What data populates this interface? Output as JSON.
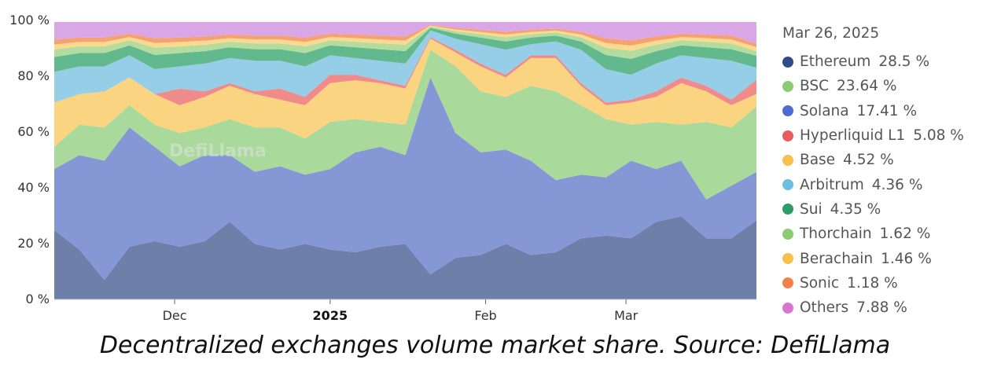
{
  "chart_data": {
    "type": "area",
    "stacked": true,
    "normalized_percent": true,
    "title": "",
    "xlabel": "",
    "ylabel": "",
    "ylim": [
      0,
      100
    ],
    "y_ticks": [
      "0 %",
      "20 %",
      "40 %",
      "60 %",
      "80 %",
      "100 %"
    ],
    "y_tick_values": [
      0,
      20,
      40,
      60,
      80,
      100
    ],
    "x_ticks": [
      {
        "label": "Dec",
        "day": 24,
        "bold": false
      },
      {
        "label": "2025",
        "day": 55,
        "bold": true
      },
      {
        "label": "Feb",
        "day": 86,
        "bold": false
      },
      {
        "label": "Mar",
        "day": 114,
        "bold": false
      }
    ],
    "x_range_days": [
      0,
      140
    ],
    "x_start_date": "Nov 7, 2024",
    "x": [
      0,
      5,
      10,
      15,
      20,
      25,
      30,
      35,
      40,
      45,
      50,
      55,
      60,
      65,
      70,
      75,
      80,
      85,
      90,
      95,
      100,
      105,
      110,
      115,
      120,
      125,
      130,
      135,
      140
    ],
    "series": [
      {
        "name": "Ethereum",
        "color": "#6e80a9",
        "dot": "#2f4b8c",
        "values": [
          25,
          18,
          7,
          19,
          21,
          19,
          21,
          28,
          20,
          18,
          20,
          18,
          17,
          19,
          20,
          9,
          15,
          16,
          20,
          16,
          17,
          22,
          23,
          22,
          28,
          30,
          22,
          22,
          28.5
        ]
      },
      {
        "name": "Solana",
        "color": "#8598d5",
        "dot": "#4f6ad0",
        "values": [
          22,
          34,
          43,
          43,
          34,
          29,
          31,
          24,
          26,
          30,
          25,
          29,
          36,
          36,
          32,
          71,
          45,
          37,
          34,
          34,
          26,
          23,
          21,
          28,
          19,
          20,
          14,
          19,
          17.41
        ]
      },
      {
        "name": "BSC",
        "color": "#a9d99b",
        "dot": "#8ccb74",
        "values": [
          8,
          11,
          12,
          8,
          8,
          12,
          10,
          13,
          16,
          14,
          13,
          17,
          12,
          9,
          11,
          10,
          24,
          22,
          19,
          27,
          32,
          25,
          21,
          13,
          17,
          13,
          28,
          21,
          23.64
        ]
      },
      {
        "name": "Base",
        "color": "#fbd481",
        "dot": "#f7c04a",
        "values": [
          16,
          11,
          13,
          10,
          11,
          10,
          11,
          12,
          12,
          10,
          12,
          14,
          14,
          14,
          13,
          4,
          5,
          9,
          7,
          10,
          12,
          7,
          5,
          8,
          9,
          15,
          11,
          8,
          4.52
        ]
      },
      {
        "name": "Hyperliquid L1",
        "color": "#f08b8b",
        "dot": "#e85c5c",
        "values": [
          0,
          0,
          0,
          0,
          0,
          6,
          2,
          1,
          1,
          4,
          3,
          3,
          2,
          1,
          1,
          0.5,
          1,
          1,
          1,
          1,
          1,
          1,
          1,
          1,
          2,
          2,
          2,
          2,
          5.08
        ]
      },
      {
        "name": "Arbitrum",
        "color": "#95cee6",
        "dot": "#6dbfdf",
        "values": [
          11,
          10,
          9,
          8,
          9,
          8,
          10,
          9,
          11,
          10,
          11,
          7,
          6,
          7,
          8,
          2.5,
          4,
          7,
          9,
          4,
          5,
          12,
          12,
          9,
          10,
          8,
          10,
          14,
          4.36
        ]
      },
      {
        "name": "Sui",
        "color": "#62b98d",
        "dot": "#2f9b6b",
        "values": [
          5.4,
          4.8,
          4.8,
          3.6,
          5.1,
          4.8,
          4.5,
          3.9,
          4.2,
          4.2,
          4.8,
          3.6,
          3.9,
          4.2,
          4.5,
          0.9,
          1.8,
          2.4,
          3,
          2.4,
          2.1,
          3,
          5.1,
          5.7,
          4.5,
          3.6,
          3.9,
          4.2,
          4.35
        ]
      },
      {
        "name": "Thorchain",
        "color": "#b3dc9e",
        "dot": "#8ccb74",
        "values": [
          2.7,
          2.4,
          2.4,
          1.8,
          2.6,
          2.4,
          2.3,
          2,
          2.1,
          2.1,
          2.4,
          1.8,
          2,
          2.1,
          2.3,
          0.5,
          0.9,
          1.2,
          1.5,
          1.2,
          1.1,
          1.5,
          2.6,
          2.9,
          2.3,
          1.8,
          2,
          2.1,
          1.62
        ]
      },
      {
        "name": "Berachain",
        "color": "#fcd98f",
        "dot": "#f7c04a",
        "values": [
          1.8,
          1.6,
          1.6,
          1.2,
          1.7,
          1.6,
          1.5,
          1.3,
          1.4,
          1.4,
          1.6,
          1.2,
          1.3,
          1.4,
          1.5,
          0.3,
          0.6,
          0.8,
          1,
          0.8,
          0.7,
          1,
          1.7,
          1.9,
          1.5,
          1.2,
          1.3,
          1.4,
          1.46
        ]
      },
      {
        "name": "Sonic",
        "color": "#f5a273",
        "dot": "#f28048",
        "values": [
          1.8,
          1.6,
          1.6,
          1.2,
          1.7,
          1.6,
          1.5,
          1.3,
          1.4,
          1.4,
          1.6,
          1.2,
          1.3,
          1.4,
          1.5,
          0.3,
          0.6,
          0.8,
          1,
          0.8,
          0.7,
          1,
          1.7,
          1.9,
          1.5,
          1.2,
          1.3,
          1.4,
          1.18
        ]
      },
      {
        "name": "Others",
        "color": "#d9a6e6",
        "dot": "#d875d2",
        "values": [
          6.3,
          5.6,
          5.6,
          4.2,
          5.9,
          5.6,
          5.2,
          4.5,
          4.9,
          4.9,
          5.6,
          4.2,
          4.5,
          4.9,
          5.2,
          1,
          2.1,
          2.8,
          3.5,
          2.8,
          2.4,
          3.5,
          5.9,
          6.6,
          5.2,
          4.2,
          4.5,
          4.9,
          7.88
        ]
      }
    ],
    "legend": {
      "placement": "right",
      "title": "Mar 26, 2025",
      "items": [
        {
          "label": "Ethereum",
          "value": "28.5 %"
        },
        {
          "label": "BSC",
          "value": "23.64 %"
        },
        {
          "label": "Solana",
          "value": "17.41 %"
        },
        {
          "label": "Hyperliquid L1",
          "value": "5.08 %"
        },
        {
          "label": "Base",
          "value": "4.52 %"
        },
        {
          "label": "Arbitrum",
          "value": "4.36 %"
        },
        {
          "label": "Sui",
          "value": "4.35 %"
        },
        {
          "label": "Thorchain",
          "value": "1.62 %"
        },
        {
          "label": "Berachain",
          "value": "1.46 %"
        },
        {
          "label": "Sonic",
          "value": "1.18 %"
        },
        {
          "label": "Others",
          "value": "7.88 %"
        }
      ],
      "dots": [
        "#2f4b8c",
        "#8ccb74",
        "#4f6ad0",
        "#e85c5c",
        "#f7c04a",
        "#6dbfdf",
        "#2f9b6b",
        "#8ccb74",
        "#f7c04a",
        "#f28048",
        "#d875d2"
      ]
    },
    "watermark": "DefiLlama",
    "caption": "Decentralized exchanges volume market share. Source: DefiLlama"
  }
}
